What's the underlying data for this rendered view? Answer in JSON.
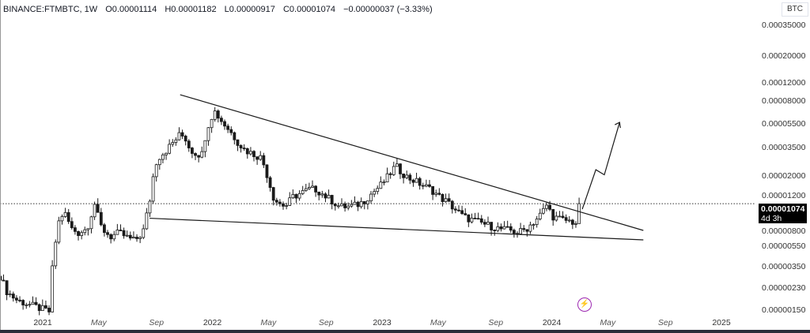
{
  "header": {
    "symbol": "BINANCE:FTMBTC, 1W",
    "open": "O0.00001114",
    "high": "H0.00001182",
    "low": "L0.00000917",
    "close": "C0.00001074",
    "change": "−0.00000037 (−3.33%)"
  },
  "currency_label": "BTC",
  "price_label": {
    "price": "0.00001074",
    "countdown": "4d 3h"
  },
  "colors": {
    "bull_fill": "#ffffff",
    "bear_fill": "#1a1a1a",
    "candle_border": "#1a1a1a",
    "trendline": "#1a1a1a",
    "bolt": "#9c27b0"
  },
  "chart_data": {
    "type": "candlestick",
    "title": "BINANCE:FTMBTC, 1W",
    "ylabel": "BTC",
    "yscale": "log",
    "units_note": "price path in satoshis (1e-8 BTC)",
    "y_ticks": [
      "0.00035000",
      "0.00020000",
      "0.00012000",
      "0.00008000",
      "0.00005500",
      "0.00003500",
      "0.00002000",
      "0.00001200",
      "0.00000800",
      "0.00000550",
      "0.00000350",
      "0.00000230",
      "0.00000150"
    ],
    "x_ticks": [
      {
        "label": "2021",
        "t": 2021.0,
        "major": true
      },
      {
        "label": "May",
        "t": 2021.33,
        "major": false
      },
      {
        "label": "Sep",
        "t": 2021.67,
        "major": false
      },
      {
        "label": "2022",
        "t": 2022.0,
        "major": true
      },
      {
        "label": "May",
        "t": 2022.33,
        "major": false
      },
      {
        "label": "Sep",
        "t": 2022.67,
        "major": false
      },
      {
        "label": "2023",
        "t": 2023.0,
        "major": true
      },
      {
        "label": "May",
        "t": 2023.33,
        "major": false
      },
      {
        "label": "Sep",
        "t": 2023.67,
        "major": false
      },
      {
        "label": "2024",
        "t": 2024.0,
        "major": true
      },
      {
        "label": "May",
        "t": 2024.33,
        "major": false
      },
      {
        "label": "Sep",
        "t": 2024.67,
        "major": false
      },
      {
        "label": "2025",
        "t": 2025.0,
        "major": true
      }
    ],
    "price_path": [
      [
        2020.75,
        281
      ],
      [
        2020.79,
        210
      ],
      [
        2020.85,
        180
      ],
      [
        2021.04,
        146
      ],
      [
        2021.06,
        377
      ],
      [
        2021.08,
        583
      ],
      [
        2021.1,
        840
      ],
      [
        2021.13,
        900
      ],
      [
        2021.17,
        675
      ],
      [
        2021.21,
        627
      ],
      [
        2021.26,
        675
      ],
      [
        2021.31,
        1120
      ],
      [
        2021.33,
        780
      ],
      [
        2021.35,
        675
      ],
      [
        2021.4,
        583
      ],
      [
        2021.45,
        627
      ],
      [
        2021.49,
        583
      ],
      [
        2021.54,
        542
      ],
      [
        2021.59,
        627
      ],
      [
        2021.62,
        970
      ],
      [
        2021.63,
        1120
      ],
      [
        2021.66,
        2160
      ],
      [
        2021.68,
        2500
      ],
      [
        2021.73,
        2900
      ],
      [
        2021.77,
        3350
      ],
      [
        2021.81,
        3870
      ],
      [
        2021.84,
        3610
      ],
      [
        2021.87,
        2900
      ],
      [
        2021.91,
        2690
      ],
      [
        2021.94,
        2690
      ],
      [
        2021.96,
        3870
      ],
      [
        2021.98,
        4820
      ],
      [
        2022.01,
        6000
      ],
      [
        2022.03,
        5500
      ],
      [
        2022.06,
        4820
      ],
      [
        2022.1,
        4170
      ],
      [
        2022.15,
        3350
      ],
      [
        2022.19,
        2900
      ],
      [
        2022.24,
        2690
      ],
      [
        2022.29,
        2500
      ],
      [
        2022.32,
        1870
      ],
      [
        2022.36,
        1210
      ],
      [
        2022.38,
        1120
      ],
      [
        2022.41,
        1045
      ],
      [
        2022.44,
        1045
      ],
      [
        2022.47,
        1210
      ],
      [
        2022.52,
        1300
      ],
      [
        2022.57,
        1400
      ],
      [
        2022.61,
        1400
      ],
      [
        2022.66,
        1250
      ],
      [
        2022.71,
        1120
      ],
      [
        2022.75,
        1015
      ],
      [
        2022.8,
        1015
      ],
      [
        2022.85,
        1045
      ],
      [
        2022.89,
        1120
      ],
      [
        2022.94,
        1300
      ],
      [
        2022.99,
        1500
      ],
      [
        2023.03,
        1740
      ],
      [
        2023.08,
        2160
      ],
      [
        2023.1,
        2010
      ],
      [
        2023.15,
        1740
      ],
      [
        2023.2,
        1620
      ],
      [
        2023.24,
        1500
      ],
      [
        2023.29,
        1400
      ],
      [
        2023.34,
        1210
      ],
      [
        2023.38,
        1120
      ],
      [
        2023.43,
        970
      ],
      [
        2023.48,
        840
      ],
      [
        2023.55,
        780
      ],
      [
        2023.62,
        725
      ],
      [
        2023.69,
        675
      ],
      [
        2023.76,
        655
      ],
      [
        2023.8,
        627
      ],
      [
        2023.85,
        675
      ],
      [
        2023.9,
        780
      ],
      [
        2023.94,
        900
      ],
      [
        2023.97,
        1045
      ],
      [
        2024.01,
        840
      ],
      [
        2024.06,
        800
      ],
      [
        2024.1,
        780
      ],
      [
        2024.15,
        750
      ],
      [
        2024.17,
        1074
      ]
    ],
    "annotations": {
      "upper_trendline": [
        [
          2021.81,
          8030
        ],
        [
          2024.54,
          655
        ]
      ],
      "lower_trendline": [
        [
          2021.63,
          820
        ],
        [
          2024.54,
          550
        ]
      ],
      "projection_arrow": [
        [
          2024.18,
          970
        ],
        [
          2024.26,
          2010
        ],
        [
          2024.31,
          1830
        ],
        [
          2024.4,
          4820
        ]
      ],
      "last_price": 1074
    }
  }
}
